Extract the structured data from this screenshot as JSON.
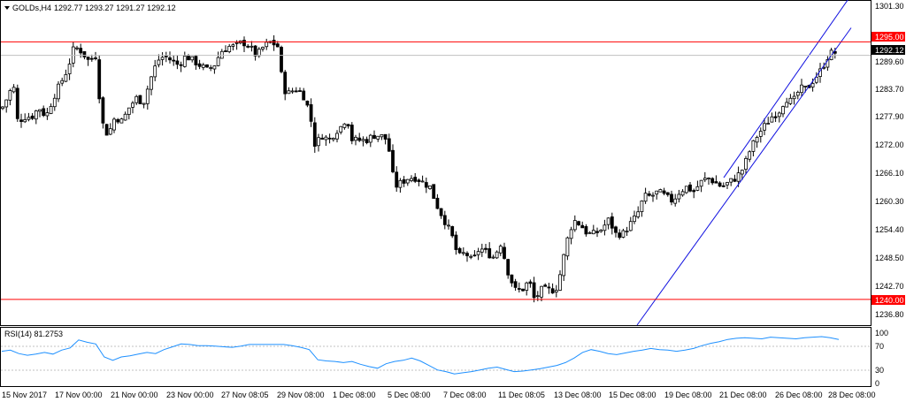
{
  "header": {
    "symbol": "GOLDs,H4",
    "ohlc": "1292.77 1293.27 1291.27 1292.12"
  },
  "colors": {
    "background": "#ffffff",
    "candle": "#000000",
    "level_line": "#ff0000",
    "channel": "#1010e0",
    "rsi_line": "#1e90ff",
    "grid": "#c0c0c0"
  },
  "price_axis": {
    "ticks": [
      "1301.30",
      "1289.60",
      "1283.70",
      "1277.90",
      "1272.00",
      "1266.10",
      "1260.30",
      "1254.40",
      "1248.50",
      "1242.70",
      "1236.80"
    ],
    "current_label": "1292.12"
  },
  "levels": [
    {
      "label": "1295.00",
      "value": 1295.0
    },
    {
      "label": "1240.00",
      "value": 1240.0
    }
  ],
  "rsi": {
    "label": "RSI(14) 81.2753",
    "ticks": [
      "100",
      "70",
      "30",
      "0"
    ]
  },
  "time_axis": {
    "labels": [
      "15 Nov 2017",
      "17 Nov 00:00",
      "21 Nov 00:00",
      "23 Nov 00:00",
      "27 Nov 08:05",
      "29 Nov 08:00",
      "1 Dec 08:00",
      "5 Dec 08:00",
      "7 Dec 08:00",
      "11 Dec 08:05",
      "13 Dec 08:00",
      "15 Dec 08:00",
      "19 Dec 08:00",
      "21 Dec 08:00",
      "26 Dec 08:00",
      "28 Dec 08:00"
    ]
  },
  "chart_data": {
    "type": "candlestick",
    "timeframe": "H4",
    "symbol": "GOLDs",
    "y_range": [
      1234.5,
      1303.0
    ],
    "horizontal_levels": [
      1295.0,
      1240.0
    ],
    "close_path": [
      [
        0,
        1280
      ],
      [
        8,
        1283
      ],
      [
        15,
        1286
      ],
      [
        20,
        1278
      ],
      [
        28,
        1279
      ],
      [
        36,
        1279
      ],
      [
        44,
        1281
      ],
      [
        52,
        1279
      ],
      [
        60,
        1283
      ],
      [
        68,
        1286
      ],
      [
        76,
        1289
      ],
      [
        84,
        1294
      ],
      [
        92,
        1293
      ],
      [
        100,
        1291
      ],
      [
        108,
        1292
      ],
      [
        115,
        1278
      ],
      [
        122,
        1275
      ],
      [
        130,
        1279
      ],
      [
        138,
        1278
      ],
      [
        146,
        1281
      ],
      [
        154,
        1283
      ],
      [
        162,
        1282
      ],
      [
        170,
        1287
      ],
      [
        178,
        1291
      ],
      [
        186,
        1292
      ],
      [
        194,
        1291
      ],
      [
        202,
        1290
      ],
      [
        210,
        1292
      ],
      [
        218,
        1291
      ],
      [
        226,
        1290
      ],
      [
        234,
        1289
      ],
      [
        242,
        1290
      ],
      [
        250,
        1293
      ],
      [
        258,
        1294
      ],
      [
        266,
        1294
      ],
      [
        274,
        1295
      ],
      [
        282,
        1294
      ],
      [
        290,
        1292
      ],
      [
        298,
        1294
      ],
      [
        306,
        1295
      ],
      [
        314,
        1294
      ],
      [
        320,
        1285
      ],
      [
        326,
        1284
      ],
      [
        334,
        1285
      ],
      [
        342,
        1284
      ],
      [
        350,
        1280
      ],
      [
        356,
        1273
      ],
      [
        364,
        1275
      ],
      [
        372,
        1274
      ],
      [
        380,
        1276
      ],
      [
        386,
        1277
      ],
      [
        392,
        1279
      ],
      [
        398,
        1274
      ],
      [
        406,
        1274
      ],
      [
        414,
        1274
      ],
      [
        422,
        1275
      ],
      [
        430,
        1275
      ],
      [
        438,
        1274
      ],
      [
        446,
        1264
      ],
      [
        454,
        1265
      ],
      [
        462,
        1266
      ],
      [
        470,
        1266
      ],
      [
        478,
        1265
      ],
      [
        486,
        1264
      ],
      [
        494,
        1260
      ],
      [
        502,
        1257
      ],
      [
        510,
        1254
      ],
      [
        518,
        1249
      ],
      [
        526,
        1250
      ],
      [
        534,
        1248
      ],
      [
        542,
        1251
      ],
      [
        550,
        1250
      ],
      [
        558,
        1249
      ],
      [
        566,
        1252
      ],
      [
        574,
        1246
      ],
      [
        582,
        1242
      ],
      [
        590,
        1242
      ],
      [
        598,
        1244
      ],
      [
        604,
        1240
      ],
      [
        612,
        1242
      ],
      [
        620,
        1242
      ],
      [
        628,
        1242
      ],
      [
        634,
        1246
      ],
      [
        640,
        1252
      ],
      [
        648,
        1257
      ],
      [
        656,
        1256
      ],
      [
        664,
        1254
      ],
      [
        672,
        1254
      ],
      [
        680,
        1255
      ],
      [
        688,
        1257
      ],
      [
        696,
        1254
      ],
      [
        704,
        1254
      ],
      [
        712,
        1256
      ],
      [
        720,
        1258
      ],
      [
        728,
        1262
      ],
      [
        736,
        1262
      ],
      [
        744,
        1263
      ],
      [
        752,
        1262
      ],
      [
        760,
        1261
      ],
      [
        768,
        1263
      ],
      [
        776,
        1264
      ],
      [
        784,
        1263
      ],
      [
        792,
        1265
      ],
      [
        800,
        1266
      ],
      [
        808,
        1265
      ],
      [
        816,
        1264
      ],
      [
        824,
        1265
      ],
      [
        832,
        1266
      ],
      [
        840,
        1268
      ],
      [
        848,
        1272
      ],
      [
        856,
        1275
      ],
      [
        864,
        1277
      ],
      [
        872,
        1279
      ],
      [
        880,
        1280
      ],
      [
        888,
        1283
      ],
      [
        896,
        1282
      ],
      [
        904,
        1285
      ],
      [
        912,
        1285
      ],
      [
        920,
        1287
      ],
      [
        928,
        1289
      ],
      [
        936,
        1292
      ],
      [
        942,
        1293
      ],
      [
        948,
        1292
      ]
    ],
    "channel": {
      "upper": [
        [
          818,
          1266
        ],
        [
          962,
          1305
        ]
      ],
      "lower": [
        [
          720,
          1234.5
        ],
        [
          962,
          1298
        ]
      ]
    },
    "rsi": {
      "period": 14,
      "last": 81.2753,
      "levels": [
        70,
        30
      ],
      "range": [
        0,
        100
      ],
      "values": [
        60,
        62,
        56,
        53,
        55,
        58,
        55,
        62,
        66,
        80,
        76,
        73,
        50,
        44,
        50,
        52,
        55,
        58,
        56,
        63,
        68,
        73,
        72,
        70,
        70,
        69,
        68,
        67,
        69,
        72,
        72,
        72,
        72,
        72,
        70,
        67,
        63,
        45,
        43,
        42,
        40,
        42,
        37,
        33,
        30,
        38,
        42,
        44,
        48,
        43,
        35,
        27,
        24,
        20,
        22,
        24,
        27,
        30,
        32,
        28,
        24,
        25,
        27,
        29,
        32,
        35,
        40,
        48,
        58,
        63,
        60,
        56,
        54,
        57,
        60,
        62,
        65,
        63,
        62,
        60,
        62,
        65,
        70,
        74,
        77,
        81,
        83,
        84,
        83,
        82,
        85,
        84,
        83,
        82,
        84,
        85,
        86,
        84,
        81
      ]
    }
  }
}
